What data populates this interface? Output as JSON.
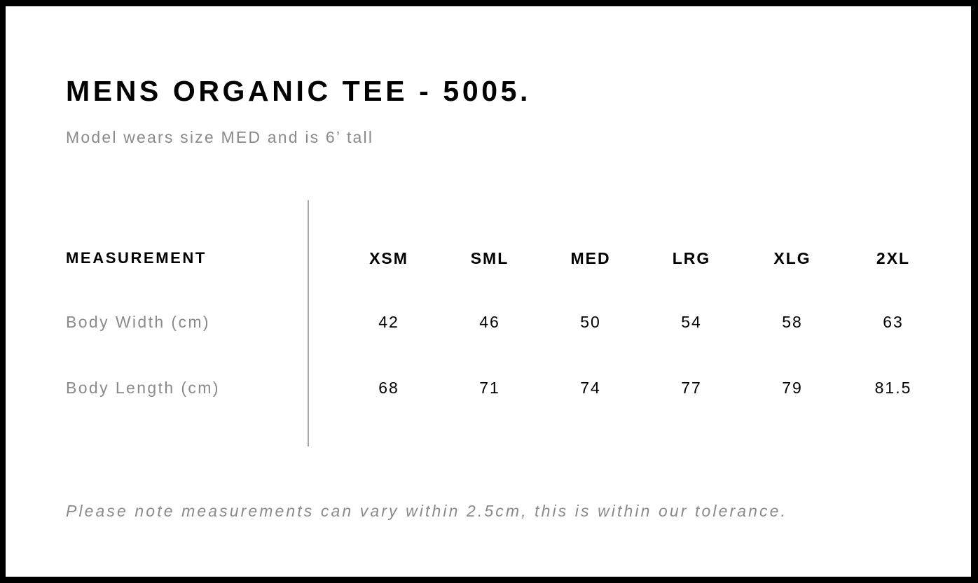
{
  "title": "MENS ORGANIC TEE - 5005.",
  "subtitle": "Model wears size MED and is 6’ tall",
  "table": {
    "header_label": "MEASUREMENT",
    "sizes": [
      "XSM",
      "SML",
      "MED",
      "LRG",
      "XLG",
      "2XL"
    ],
    "rows": [
      {
        "label": "Body Width (cm)",
        "values": [
          "42",
          "46",
          "50",
          "54",
          "58",
          "63"
        ]
      },
      {
        "label": "Body Length (cm)",
        "values": [
          "68",
          "71",
          "74",
          "77",
          "79",
          "81.5"
        ]
      }
    ]
  },
  "note": "Please note measurements can vary within 2.5cm, this is within our tolerance."
}
